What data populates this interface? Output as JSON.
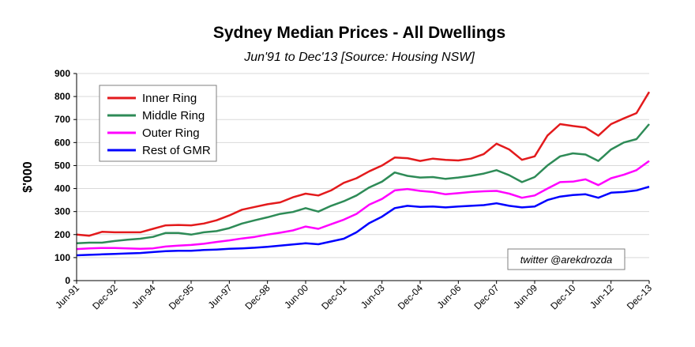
{
  "chart_data": {
    "type": "line",
    "title": "Sydney Median Prices - All Dwellings",
    "subtitle": "Jun'91 to Dec'13  [Source: Housing NSW]",
    "ylabel": "$'000",
    "xlabel": "",
    "ylim": [
      0,
      900
    ],
    "yticks": [
      0,
      100,
      200,
      300,
      400,
      500,
      600,
      700,
      800,
      900
    ],
    "grid": "horizontal",
    "legend_position": "top-left",
    "credit": "twitter @arekdrozda",
    "x_ticks": [
      "Jun-91",
      "Dec-92",
      "Jun-94",
      "Dec-95",
      "Jun-97",
      "Dec-98",
      "Jun-00",
      "Dec-01",
      "Jun-03",
      "Dec-04",
      "Jun-06",
      "Dec-07",
      "Jun-09",
      "Dec-10",
      "Jun-12",
      "Dec-13"
    ],
    "x": [
      "Jun-91",
      "Dec-91",
      "Jun-92",
      "Dec-92",
      "Jun-93",
      "Dec-93",
      "Jun-94",
      "Dec-94",
      "Jun-95",
      "Dec-95",
      "Jun-96",
      "Dec-96",
      "Jun-97",
      "Dec-97",
      "Jun-98",
      "Dec-98",
      "Jun-99",
      "Dec-99",
      "Jun-00",
      "Dec-00",
      "Jun-01",
      "Dec-01",
      "Jun-02",
      "Dec-02",
      "Jun-03",
      "Dec-03",
      "Jun-04",
      "Dec-04",
      "Jun-05",
      "Dec-05",
      "Jun-06",
      "Dec-06",
      "Jun-07",
      "Dec-07",
      "Jun-08",
      "Dec-08",
      "Jun-09",
      "Dec-09",
      "Jun-10",
      "Dec-10",
      "Jun-11",
      "Dec-11",
      "Jun-12",
      "Dec-12",
      "Jun-13",
      "Dec-13"
    ],
    "series": [
      {
        "name": "Inner Ring",
        "color": "#e31a1c",
        "values": [
          200,
          195,
          212,
          210,
          210,
          210,
          225,
          240,
          242,
          240,
          248,
          262,
          283,
          308,
          320,
          332,
          340,
          362,
          378,
          370,
          392,
          425,
          445,
          475,
          500,
          535,
          532,
          520,
          530,
          525,
          522,
          530,
          550,
          595,
          570,
          525,
          540,
          630,
          680,
          672,
          665,
          630,
          680,
          705,
          728,
          820
        ]
      },
      {
        "name": "Middle Ring",
        "color": "#2e8b57",
        "values": [
          162,
          165,
          165,
          172,
          178,
          182,
          190,
          207,
          207,
          200,
          210,
          215,
          228,
          248,
          262,
          275,
          290,
          298,
          315,
          300,
          325,
          345,
          370,
          405,
          430,
          470,
          455,
          448,
          450,
          442,
          448,
          455,
          465,
          480,
          458,
          428,
          450,
          500,
          540,
          553,
          548,
          520,
          570,
          600,
          615,
          680
        ]
      },
      {
        "name": "Outer Ring",
        "color": "#ff00ff",
        "values": [
          137,
          140,
          142,
          142,
          140,
          138,
          140,
          148,
          152,
          155,
          160,
          168,
          175,
          183,
          190,
          200,
          208,
          218,
          235,
          225,
          245,
          265,
          290,
          330,
          355,
          392,
          398,
          390,
          385,
          375,
          380,
          385,
          388,
          390,
          378,
          360,
          370,
          400,
          428,
          430,
          440,
          415,
          445,
          460,
          480,
          520
        ]
      },
      {
        "name": "Rest of GMR",
        "color": "#0000ff",
        "values": [
          110,
          112,
          114,
          116,
          118,
          120,
          124,
          128,
          130,
          130,
          133,
          135,
          138,
          140,
          143,
          147,
          152,
          157,
          162,
          158,
          170,
          182,
          210,
          250,
          278,
          315,
          325,
          320,
          322,
          318,
          322,
          325,
          328,
          336,
          325,
          318,
          322,
          350,
          365,
          372,
          375,
          360,
          382,
          385,
          392,
          408
        ]
      }
    ]
  }
}
